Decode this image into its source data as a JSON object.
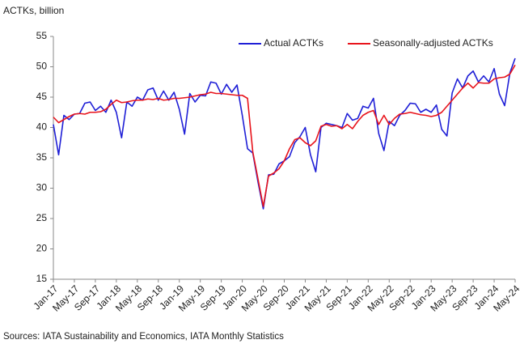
{
  "chart_data": {
    "type": "line",
    "y_axis_label": "ACTKs, billion",
    "source": "Sources: IATA Sustainability and Economics, IATA Monthly Statistics",
    "legend_position": "upper right",
    "grid": false,
    "ylim": [
      15,
      55
    ],
    "yticks": [
      15,
      20,
      25,
      30,
      35,
      40,
      45,
      50,
      55
    ],
    "categories": [
      "Jan-17",
      null,
      null,
      null,
      "May-17",
      null,
      null,
      null,
      "Sep-17",
      null,
      null,
      null,
      "Jan-18",
      null,
      null,
      null,
      "May-18",
      null,
      null,
      null,
      "Sep-18",
      null,
      null,
      null,
      "Jan-19",
      null,
      null,
      null,
      "May-19",
      null,
      null,
      null,
      "Sep-19",
      null,
      null,
      null,
      "Jan-20",
      null,
      null,
      null,
      "May-20",
      null,
      null,
      null,
      "Sep-20",
      null,
      null,
      null,
      "Jan-21",
      null,
      null,
      null,
      "May-21",
      null,
      null,
      null,
      "Sep-21",
      null,
      null,
      null,
      "Jan-22",
      null,
      null,
      null,
      "May-22",
      null,
      null,
      null,
      "Sep-22",
      null,
      null,
      null,
      "Jan-23",
      null,
      null,
      null,
      "May-23",
      null,
      null,
      null,
      "Sep-23",
      null,
      null,
      null,
      "Jan-24",
      null,
      null,
      null,
      "May-24"
    ],
    "series": [
      {
        "name": "Actual ACTKs",
        "color": "#1f1fd6",
        "values": [
          40.5,
          35.5,
          42,
          41.3,
          42.2,
          42.3,
          44,
          44.2,
          42.8,
          43.5,
          42.5,
          44.5,
          42.5,
          38.3,
          44.2,
          43.5,
          45,
          44.5,
          46.2,
          46.5,
          44.5,
          46,
          44.5,
          45.8,
          43,
          38.9,
          45.6,
          44.2,
          45.3,
          45.2,
          47.5,
          47.3,
          45.5,
          47.1,
          45.8,
          47,
          42,
          36.5,
          35.8,
          31,
          26.6,
          32.2,
          32.3,
          34,
          34.5,
          35.2,
          37.5,
          38.5,
          40,
          35.5,
          32.7,
          40,
          40.7,
          40.5,
          40.3,
          40,
          42.3,
          41.2,
          41.5,
          43.5,
          43.2,
          44.8,
          39,
          36.2,
          41,
          40.3,
          42,
          42.8,
          44,
          43.9,
          42.5,
          43,
          42.5,
          43.7,
          39.7,
          38.6,
          45.7,
          48,
          46.5,
          48.5,
          49.3,
          47.5,
          48.5,
          47.5,
          49.7,
          45.5,
          43.6,
          49,
          51.4
        ]
      },
      {
        "name": "Seasonally-adjusted ACTKs",
        "color": "#e8141c",
        "values": [
          41.7,
          40.8,
          41.3,
          41.8,
          42.2,
          42.3,
          42.2,
          42.5,
          42.5,
          42.6,
          43,
          43.8,
          44.5,
          44.1,
          44.2,
          44.4,
          44.5,
          44.5,
          44.7,
          44.6,
          44.8,
          44.5,
          44.6,
          44.8,
          44.8,
          44.9,
          45,
          45.2,
          45.4,
          45.5,
          45.8,
          45.6,
          45.6,
          45.5,
          45.4,
          45.3,
          45.3,
          44.8,
          36,
          31.5,
          27,
          32,
          32.5,
          33.2,
          34.5,
          36.5,
          38,
          38.3,
          37.5,
          37,
          37.8,
          40.2,
          40.5,
          40.2,
          40.3,
          39.8,
          40.5,
          39.8,
          41,
          42,
          42.5,
          42.8,
          40.5,
          42,
          40.5,
          41.5,
          42.2,
          42.3,
          42.5,
          42.3,
          42.1,
          42,
          41.8,
          42,
          42.5,
          43.5,
          44.5,
          45.5,
          46.5,
          47.3,
          46.5,
          47.4,
          47.3,
          47.3,
          48,
          48.2,
          48.3,
          48.8,
          50.3
        ]
      }
    ]
  }
}
